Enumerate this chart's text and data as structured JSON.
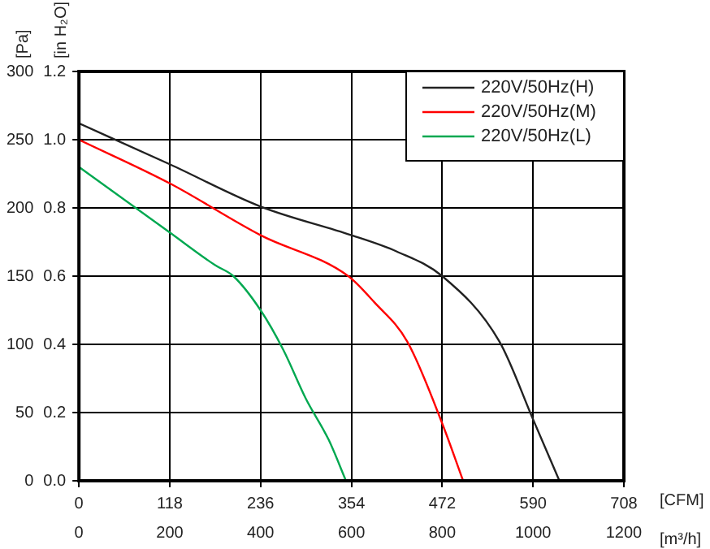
{
  "chart_data": {
    "type": "line",
    "xlabel": "[m³/h]",
    "x2label": "[CFM]",
    "ylabel": "[Pa]",
    "y2label": "[in H₂O]",
    "xlim": [
      0,
      1200
    ],
    "xticks": [
      0,
      200,
      400,
      600,
      800,
      1000,
      1200
    ],
    "x2lim": [
      0,
      708
    ],
    "x2ticks": [
      0,
      118,
      236,
      354,
      472,
      590,
      708
    ],
    "ylim": [
      0,
      300
    ],
    "yticks": [
      0,
      50,
      100,
      150,
      200,
      250,
      300
    ],
    "y2lim": [
      0,
      1.2
    ],
    "y2ticks": [
      {
        "value": 0,
        "label": "0.0"
      },
      0.2,
      0.4,
      0.6,
      0.8,
      {
        "value": 1,
        "label": "1.0"
      },
      1.2
    ],
    "grid": true,
    "legend": "top right",
    "marker": "none",
    "line_style": "solid",
    "series": [
      {
        "name": "220V/50Hz(H)",
        "color": "#222222",
        "x": [
          0,
          200,
          400,
          600,
          700,
          800,
          926,
          1000,
          1058
        ],
        "values": [
          262,
          232,
          201,
          180,
          168,
          150,
          102,
          45,
          0
        ]
      },
      {
        "name": "220V/50Hz(M)",
        "color": "#ff0000",
        "x": [
          0,
          200,
          400,
          593,
          650,
          723,
          800,
          846
        ],
        "values": [
          250,
          218,
          180,
          150,
          131,
          102,
          42,
          0
        ]
      },
      {
        "name": "220V/50Hz(L)",
        "color": "#00a850",
        "x": [
          0,
          200,
          300,
          340,
          400,
          450,
          500,
          550,
          588
        ],
        "values": [
          230,
          182,
          158,
          150,
          125,
          96,
          60,
          30,
          0
        ]
      }
    ]
  }
}
